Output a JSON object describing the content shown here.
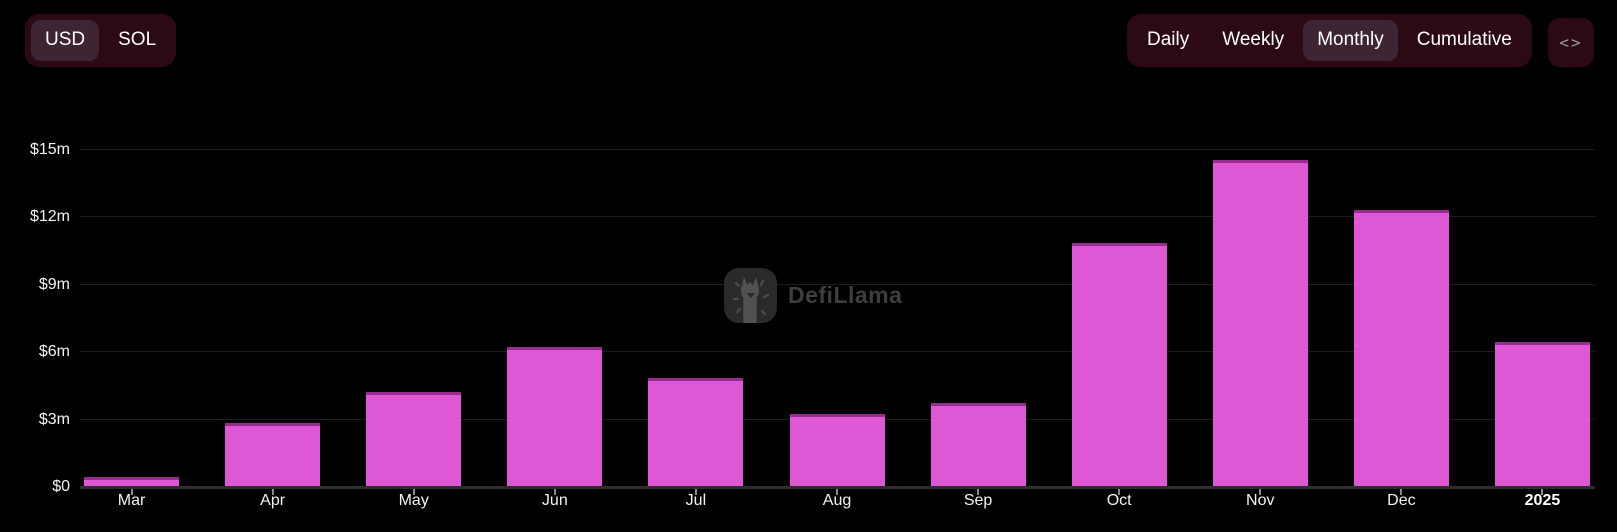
{
  "header": {
    "currency_toggle": {
      "options": [
        "USD",
        "SOL"
      ],
      "selected": "USD"
    },
    "interval_toggle": {
      "options": [
        "Daily",
        "Weekly",
        "Monthly",
        "Cumulative"
      ],
      "selected": "Monthly"
    },
    "embed_button": {
      "icon": "code-icon",
      "glyph": "<>"
    }
  },
  "watermark": {
    "text": "DefiLlama"
  },
  "colors": {
    "background": "#000000",
    "bar_fill": "#de58d6",
    "bar_top_border": "#972b8f",
    "button_group_bg": "#2b0a16",
    "active_pill_bg": "#3f2433",
    "grid_line": "#1c1c1c",
    "axis_line": "#2e2e2e",
    "watermark_gray": "#3e3e3e"
  },
  "chart_data": {
    "type": "bar",
    "title": "",
    "categories": [
      "Mar",
      "Apr",
      "May",
      "Jun",
      "Jul",
      "Aug",
      "Sep",
      "Oct",
      "Nov",
      "Dec",
      "2025"
    ],
    "values": [
      0.4,
      2.8,
      4.2,
      6.2,
      4.8,
      3.2,
      3.7,
      10.8,
      14.5,
      12.3,
      6.4
    ],
    "value_unit": "USD (millions)",
    "y_ticks": [
      {
        "label": "$15m",
        "value": 15
      },
      {
        "label": "$12m",
        "value": 12
      },
      {
        "label": "$9m",
        "value": 9
      },
      {
        "label": "$6m",
        "value": 6
      },
      {
        "label": "$3m",
        "value": 3
      },
      {
        "label": "$0",
        "value": 0
      }
    ],
    "ylim": [
      0,
      16.3
    ],
    "xlabel": "",
    "ylabel": "",
    "grid": "horizontal",
    "legend": "none",
    "emphasized_categories": [
      "2025"
    ]
  }
}
